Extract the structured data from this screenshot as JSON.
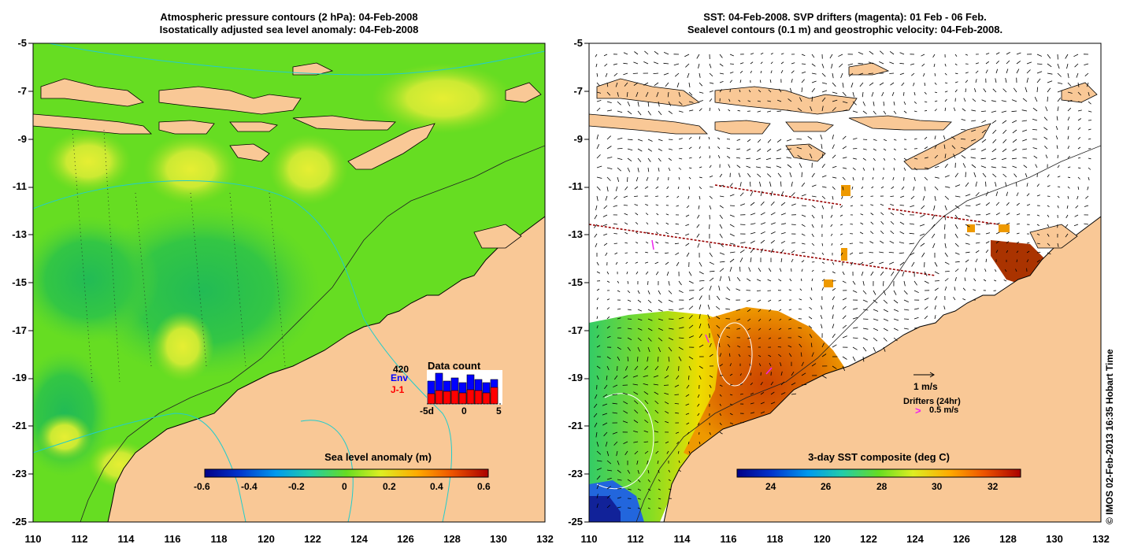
{
  "left_panel": {
    "title_line1": "Atmospheric pressure contours (2 hPa): 04-Feb-2008",
    "title_line2": "Isostatically adjusted sea level anomaly: 04-Feb-2008",
    "colorbar_title": "Sea level anomaly (m)",
    "colorbar_ticks": [
      "-0.6",
      "-0.4",
      "-0.2",
      "0",
      "0.2",
      "0.4",
      "0.6"
    ],
    "data_count": {
      "title": "Data count",
      "max_label": "420",
      "env_label": "Env",
      "j1_label": "J-1",
      "axis_labels": [
        "-5d",
        "0",
        "5"
      ]
    }
  },
  "right_panel": {
    "title_line1": "SST: 04-Feb-2008. SVP drifters (magenta): 01 Feb - 06 Feb.",
    "title_line2": "Sealevel contours (0.1 m) and geostrophic velocity: 04-Feb-2008.",
    "colorbar_title": "3-day SST composite (deg C)",
    "colorbar_ticks": [
      "24",
      "26",
      "28",
      "30",
      "32"
    ],
    "velocity_scale_label": "1 m/s",
    "drifters_label": "Drifters (24hr)",
    "drifter_scale_label": "0.5 m/s",
    "drifter_symbol": ">"
  },
  "axes": {
    "y_ticks": [
      "-5",
      "-7",
      "-9",
      "-11",
      "-13",
      "-15",
      "-17",
      "-19",
      "-21",
      "-23",
      "-25"
    ],
    "x_ticks": [
      "110",
      "112",
      "114",
      "116",
      "118",
      "120",
      "122",
      "124",
      "126",
      "128",
      "130",
      "132"
    ]
  },
  "credit": "© IMOS 02-Feb-2013 16:35 Hobart Time",
  "colors": {
    "land": "#f9c896",
    "ocean_green": "#66dd22",
    "drifter": "#ee22ee",
    "track": "#990000",
    "env_bar": "#0000ff",
    "j1_bar": "#ff0000"
  }
}
